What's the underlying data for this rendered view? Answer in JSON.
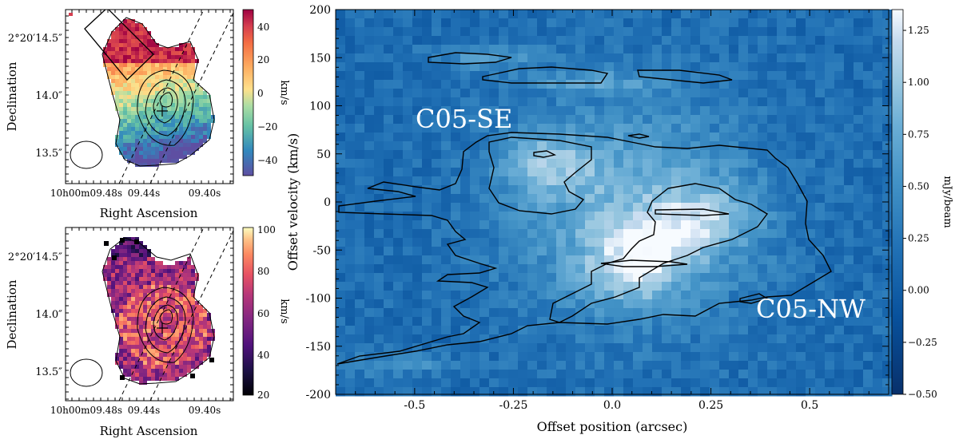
{
  "top_panel": {
    "ylabel": "Declination",
    "xlabel": "Right Ascension",
    "yticks": [
      "2°20′14.5″",
      "14.0″",
      "13.5″"
    ],
    "xticks": [
      "10h00m09.48s",
      "09.44s",
      "09.40s"
    ],
    "colorbar": {
      "label": "km/s",
      "ticks": [
        "40",
        "20",
        "0",
        "−20",
        "−40"
      ],
      "range": [
        -50,
        50
      ],
      "cmap": "Spectral_r"
    }
  },
  "bottom_panel": {
    "ylabel": "Declination",
    "xlabel": "Right Ascension",
    "yticks": [
      "2°20′14.5″",
      "14.0″",
      "13.5″"
    ],
    "xticks": [
      "10h00m09.48s",
      "09.44s",
      "09.40s"
    ],
    "colorbar": {
      "label": "km/s",
      "ticks": [
        "100",
        "80",
        "60",
        "40",
        "20"
      ],
      "range": [
        20,
        100
      ],
      "cmap": "magma"
    }
  },
  "pv_panel": {
    "xlabel": "Offset position (arcsec)",
    "ylabel": "Offset velocity (km/s)",
    "xticks": [
      "-0.5",
      "-0.25",
      "0.0",
      "0.25",
      "0.5"
    ],
    "yticks": [
      "200",
      "150",
      "100",
      "50",
      "0",
      "-50",
      "-100",
      "-150",
      "-200"
    ],
    "annotations": {
      "se": "C05-SE",
      "nw": "C05-NW"
    },
    "colorbar": {
      "label": "mJy/beam",
      "ticks": [
        "1.25",
        "1.00",
        "0.75",
        "0.50",
        "0.25",
        "0.00",
        "−0.25",
        "−0.50"
      ],
      "range": [
        -0.5,
        1.35
      ],
      "cmap": "Blues_r"
    }
  },
  "chart_data": [
    {
      "type": "heatmap",
      "title": "",
      "xlabel": "Right Ascension",
      "ylabel": "Declination",
      "colorbar_label": "km/s",
      "color_range": [
        -50,
        50
      ],
      "colorbar_ticks": [
        40,
        20,
        0,
        -20,
        -40
      ],
      "description_values": "velocity field: red (+50) to NW, blue (-40) to S"
    },
    {
      "type": "heatmap",
      "title": "",
      "xlabel": "Right Ascension",
      "ylabel": "Declination",
      "colorbar_label": "km/s",
      "color_range": [
        20,
        100
      ],
      "colorbar_ticks": [
        100,
        80,
        60,
        40,
        20
      ]
    },
    {
      "type": "heatmap",
      "title": "",
      "xlabel": "Offset position (arcsec)",
      "ylabel": "Offset velocity (km/s)",
      "xlim": [
        -0.7,
        0.7
      ],
      "ylim": [
        -200,
        200
      ],
      "xticks": [
        -0.5,
        -0.25,
        0.0,
        0.25,
        0.5
      ],
      "yticks": [
        200,
        150,
        100,
        50,
        0,
        -50,
        -100,
        -150,
        -200
      ],
      "colorbar_label": "mJy/beam",
      "color_range": [
        -0.5,
        1.35
      ],
      "colorbar_ticks": [
        1.25,
        1.0,
        0.75,
        0.5,
        0.25,
        0.0,
        -0.25,
        -0.5
      ],
      "annotations": [
        "C05-SE",
        "C05-NW"
      ],
      "bright_components": [
        {
          "x": -0.17,
          "y": 40,
          "value": 1.2
        },
        {
          "x": 0.05,
          "y": -75,
          "value": 1.25
        },
        {
          "x": 0.25,
          "y": -15,
          "value": 1.2
        },
        {
          "x": 0.1,
          "y": -40,
          "value": 1.1
        }
      ]
    }
  ]
}
